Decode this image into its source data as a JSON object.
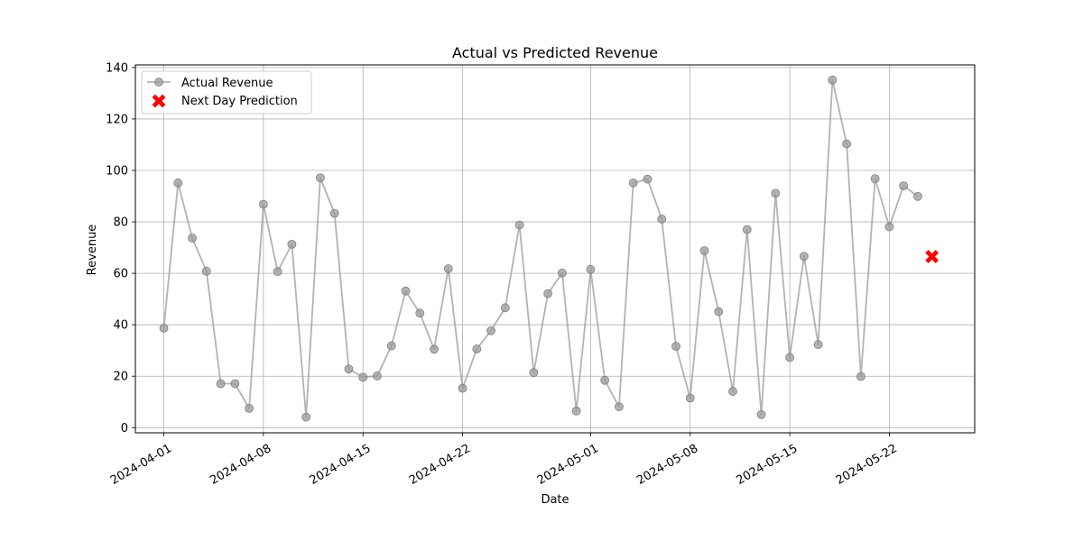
{
  "chart_data": {
    "type": "line",
    "title": "Actual vs Predicted Revenue",
    "xlabel": "Date",
    "ylabel": "Revenue",
    "grid": true,
    "legend_position": "top-left",
    "x_range": [
      "2024-03-30",
      "2024-05-28"
    ],
    "ylim": [
      -2,
      141
    ],
    "x_ticks": [
      "2024-04-01",
      "2024-04-08",
      "2024-04-15",
      "2024-04-22",
      "2024-05-01",
      "2024-05-08",
      "2024-05-15",
      "2024-05-22"
    ],
    "y_ticks": [
      0,
      20,
      40,
      60,
      80,
      100,
      120,
      140
    ],
    "series": [
      {
        "name": "Actual Revenue",
        "color": "#999999",
        "marker": "circle",
        "x": [
          "2024-04-01",
          "2024-04-02",
          "2024-04-03",
          "2024-04-04",
          "2024-04-05",
          "2024-04-06",
          "2024-04-07",
          "2024-04-08",
          "2024-04-09",
          "2024-04-10",
          "2024-04-11",
          "2024-04-12",
          "2024-04-13",
          "2024-04-14",
          "2024-04-15",
          "2024-04-16",
          "2024-04-17",
          "2024-04-18",
          "2024-04-19",
          "2024-04-20",
          "2024-04-21",
          "2024-04-22",
          "2024-04-23",
          "2024-04-24",
          "2024-04-25",
          "2024-04-26",
          "2024-04-27",
          "2024-04-28",
          "2024-04-29",
          "2024-04-30",
          "2024-05-01",
          "2024-05-02",
          "2024-05-03",
          "2024-05-04",
          "2024-05-05",
          "2024-05-06",
          "2024-05-07",
          "2024-05-08",
          "2024-05-09",
          "2024-05-10",
          "2024-05-11",
          "2024-05-12",
          "2024-05-13",
          "2024-05-14",
          "2024-05-15",
          "2024-05-16",
          "2024-05-17",
          "2024-05-18",
          "2024-05-19",
          "2024-05-20",
          "2024-05-21",
          "2024-05-22",
          "2024-05-23",
          "2024-05-24"
        ],
        "values": [
          38.7,
          95.1,
          73.7,
          60.8,
          17.1,
          17.1,
          7.5,
          86.8,
          60.7,
          71.3,
          4.1,
          97.1,
          83.3,
          22.8,
          19.6,
          20.1,
          31.8,
          53.1,
          44.5,
          30.5,
          61.8,
          15.3,
          30.6,
          37.7,
          46.6,
          78.8,
          21.4,
          52.1,
          60.1,
          6.5,
          61.5,
          18.4,
          8.1,
          95.1,
          96.6,
          81.1,
          31.6,
          11.5,
          68.8,
          45.1,
          14.1,
          77.0,
          5.1,
          91.1,
          27.3,
          66.6,
          32.3,
          135.1,
          110.3,
          19.9,
          96.8,
          78.1,
          94.0,
          89.9
        ]
      },
      {
        "name": "Next Day Prediction",
        "color": "#ff0000",
        "marker": "x",
        "x": [
          "2024-05-25"
        ],
        "values": [
          66.5
        ]
      }
    ]
  }
}
